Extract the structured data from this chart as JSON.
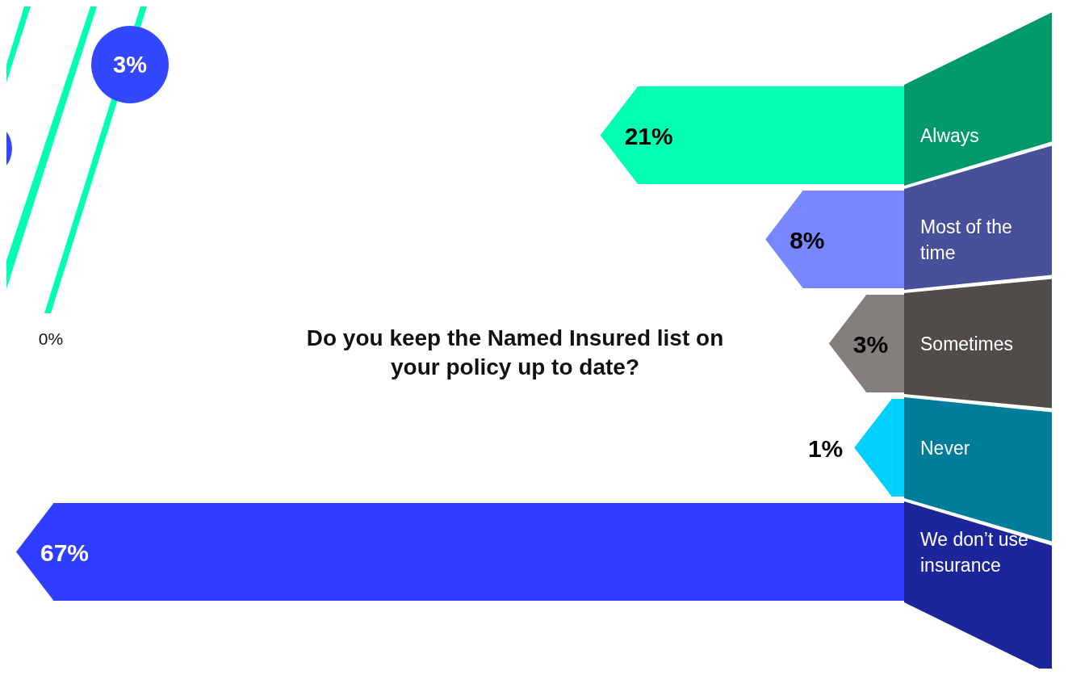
{
  "chart_data": [
    {
      "type": "other",
      "annotations": [
        "3%",
        "0%"
      ]
    },
    {
      "type": "bar",
      "orientation": "horizontal",
      "title": "Do you keep the Named Insured list on your policy up to date?",
      "categories": [
        "Always",
        "Most of the time",
        "Sometimes",
        "Never",
        "We don’t use insurance"
      ],
      "values": [
        21,
        8,
        3,
        1,
        67
      ],
      "colors": [
        "#00ffb0",
        "#7886ff",
        "#857f7b",
        "#00d0ff",
        "#2f3dff"
      ],
      "data_labels": true,
      "value_labels": [
        "21%",
        "8%",
        "3%",
        "1%",
        "67%"
      ]
    }
  ]
}
